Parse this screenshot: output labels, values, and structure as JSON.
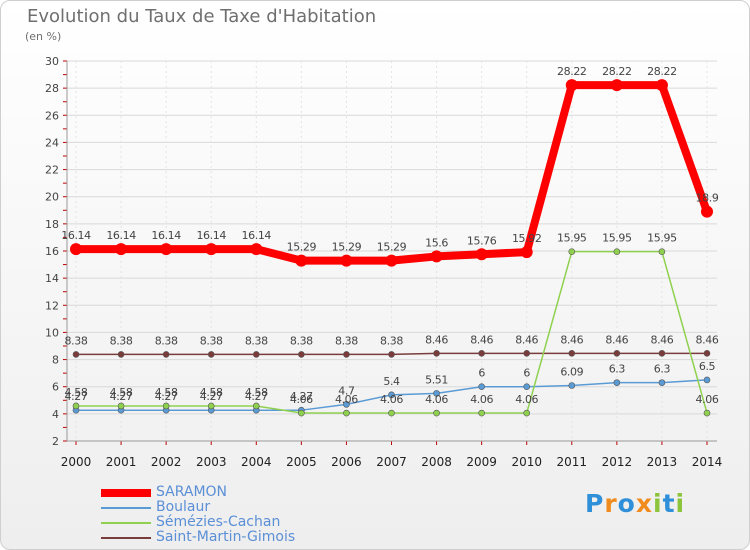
{
  "chart_data": {
    "type": "line",
    "title": "Evolution du Taux de Taxe d'Habitation",
    "subtitle": "(en %)",
    "x": [
      "2000",
      "2001",
      "2002",
      "2003",
      "2004",
      "2005",
      "2006",
      "2007",
      "2008",
      "2009",
      "2010",
      "2011",
      "2012",
      "2013",
      "2014"
    ],
    "ylim": [
      2,
      30
    ],
    "yticks": [
      2,
      4,
      6,
      8,
      10,
      12,
      14,
      16,
      18,
      20,
      22,
      24,
      26,
      28,
      30
    ],
    "grid": true,
    "legend_position": "bottom-left",
    "series": [
      {
        "name": "SARAMON",
        "color": "#ff0000",
        "values": [
          16.14,
          16.14,
          16.14,
          16.14,
          16.14,
          15.29,
          15.29,
          15.29,
          15.6,
          15.76,
          15.92,
          28.22,
          28.22,
          28.22,
          18.9
        ],
        "labels": [
          "16.14",
          "16.14",
          "16.14",
          "16.14",
          "16.14",
          "15.29",
          "15.29",
          "15.29",
          "15.6",
          "15.76",
          "15.92",
          "28.22",
          "28.22",
          "28.22",
          "18.9"
        ]
      },
      {
        "name": "Boulaur",
        "color": "#5b9bd5",
        "values": [
          4.27,
          4.27,
          4.27,
          4.27,
          4.27,
          4.27,
          4.7,
          5.4,
          5.51,
          6,
          6,
          6.09,
          6.3,
          6.3,
          6.5
        ],
        "labels": [
          "4.27",
          "4.27",
          "4.27",
          "4.27",
          "4.27",
          "4.27",
          "4.7",
          "5.4",
          "5.51",
          "6",
          "6",
          "6.09",
          "6.3",
          "6.3",
          "6.5"
        ]
      },
      {
        "name": "Sémézies-Cachan",
        "color": "#8fd14f",
        "values": [
          4.58,
          4.58,
          4.58,
          4.58,
          4.58,
          4.06,
          4.06,
          4.06,
          4.06,
          4.06,
          4.06,
          15.95,
          15.95,
          15.95,
          4.06
        ],
        "labels": [
          "4.58",
          "4.58",
          "4.58",
          "4.58",
          "4.58",
          "4.06",
          "4.06",
          "4.06",
          "4.06",
          "4.06",
          "4.06",
          "15.95",
          "15.95",
          "15.95",
          "4.06"
        ]
      },
      {
        "name": "Saint-Martin-Gimois",
        "color": "#7a3b3b",
        "values": [
          8.38,
          8.38,
          8.38,
          8.38,
          8.38,
          8.38,
          8.38,
          8.38,
          8.46,
          8.46,
          8.46,
          8.46,
          8.46,
          8.46,
          8.46
        ],
        "labels": [
          "8.38",
          "8.38",
          "8.38",
          "8.38",
          "8.38",
          "8.38",
          "8.38",
          "8.38",
          "8.46",
          "8.46",
          "8.46",
          "8.46",
          "8.46",
          "8.46",
          "8.46"
        ]
      }
    ]
  },
  "legend": {
    "items": [
      {
        "name": "SARAMON",
        "color": "#ff0000",
        "text_color": "#5b8fd6"
      },
      {
        "name": "Boulaur",
        "color": "#5b9bd5",
        "text_color": "#5b8fd6"
      },
      {
        "name": "Sémézies-Cachan",
        "color": "#8fd14f",
        "text_color": "#5b8fd6"
      },
      {
        "name": "Saint-Martin-Gimois",
        "color": "#7a3b3b",
        "text_color": "#5b8fd6"
      }
    ]
  },
  "logo": {
    "text": "Proxiti",
    "letters": [
      "P",
      "r",
      "o",
      "x",
      "i",
      "t",
      "i"
    ],
    "colors": [
      "#2f8fd8",
      "#f08c1e",
      "#2f8fd8",
      "#f08c1e",
      "#8cc43c",
      "#2f8fd8",
      "#8cc43c"
    ]
  }
}
